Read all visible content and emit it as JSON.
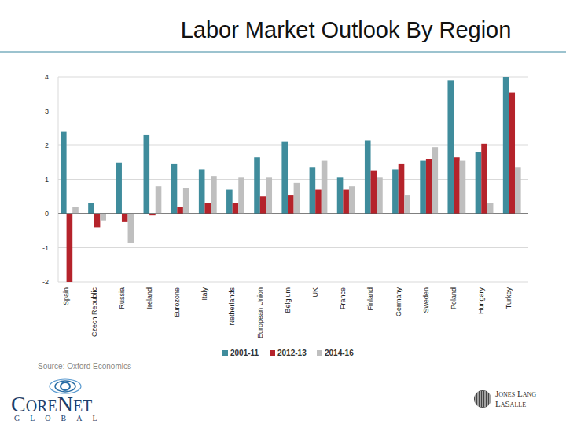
{
  "chart_data": {
    "type": "bar",
    "title": "Labor Market Outlook By Region",
    "source": "Source: Oxford Economics",
    "categories": [
      "Spain",
      "Czech Republic",
      "Russia",
      "Ireland",
      "Eurozone",
      "Italy",
      "Netherlands",
      "European Union",
      "Belgium",
      "UK",
      "France",
      "Finland",
      "Germany",
      "Sweden",
      "Poland",
      "Hungary",
      "Turkey"
    ],
    "series": [
      {
        "name": "2001-11",
        "color": "#3f8c9c",
        "values": [
          2.4,
          0.3,
          1.5,
          2.3,
          1.45,
          1.3,
          0.7,
          1.65,
          2.1,
          1.35,
          1.05,
          2.15,
          1.3,
          1.55,
          3.9,
          1.8,
          4.0
        ]
      },
      {
        "name": "2012-13",
        "color": "#b5232b",
        "values": [
          -2.0,
          -0.4,
          -0.25,
          -0.05,
          0.2,
          0.3,
          0.3,
          0.5,
          0.55,
          0.7,
          0.7,
          1.25,
          1.45,
          1.6,
          1.65,
          2.05,
          3.55
        ]
      },
      {
        "name": "2014-16",
        "color": "#bfbfbf",
        "values": [
          0.2,
          -0.2,
          -0.85,
          0.8,
          0.75,
          1.1,
          1.05,
          1.05,
          0.9,
          1.55,
          0.8,
          1.05,
          0.55,
          1.95,
          1.55,
          0.3,
          1.35
        ]
      }
    ],
    "ylim": [
      -2,
      4
    ],
    "yticks": [
      -2,
      -1,
      0,
      1,
      2,
      3,
      4
    ],
    "grid": true,
    "legend": "bottom"
  },
  "branding": {
    "left_logo": {
      "name": "CoreNet",
      "sub": "GLOBAL"
    },
    "right_logo": {
      "line1": "Jones Lang",
      "line2": "LaSalle"
    }
  }
}
